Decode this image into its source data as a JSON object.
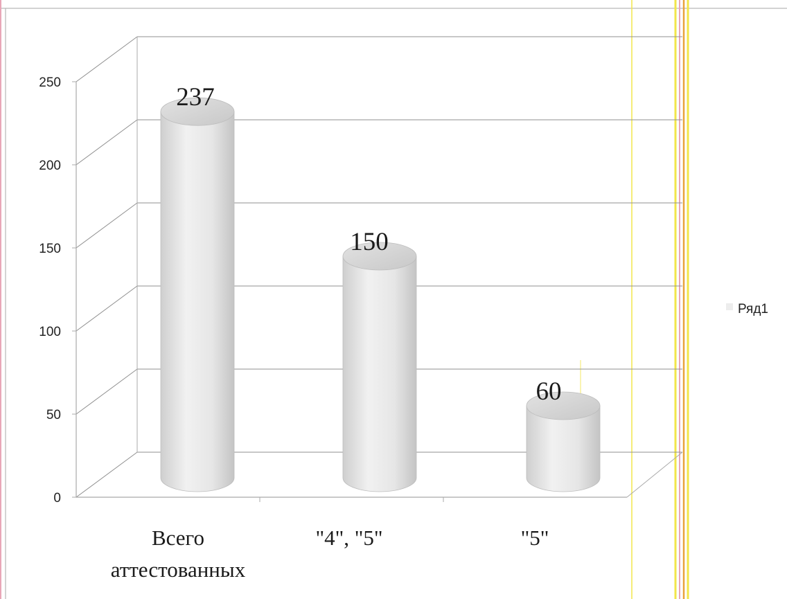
{
  "chart_data": {
    "type": "bar",
    "style": "3d-cylinder",
    "categories": [
      "Всего аттестованных",
      "\"4\", \"5\"",
      "\"5\""
    ],
    "category_lines": [
      [
        "Всего",
        "аттестованных"
      ],
      [
        "\"4\", \"5\""
      ],
      [
        "\"5\""
      ]
    ],
    "series": [
      {
        "name": "Ряд1",
        "values": [
          237,
          150,
          60
        ]
      }
    ],
    "data_labels": [
      "237",
      "150",
      "60"
    ],
    "ylim": [
      0,
      250
    ],
    "yticks": [
      0,
      50,
      100,
      150,
      200,
      250
    ],
    "grid": true,
    "legend": {
      "position": "right",
      "entries": [
        "Ряд1"
      ]
    },
    "title": "",
    "xlabel": "",
    "ylabel": ""
  },
  "colors": {
    "bar": "#e9e9e9",
    "bar_shade": "#c9c9c9",
    "bar_top": "#d8d8d8",
    "grid": "#8f8f8f",
    "axis": "#a9a9a9",
    "frame": "#b8b8b8",
    "accent_yellow": "#f2e64a",
    "accent_orange": "#e8a23a",
    "accent_pink": "#e8a7b8"
  }
}
